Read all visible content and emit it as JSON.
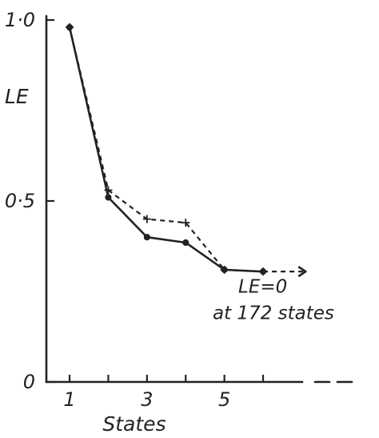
{
  "chart_data": {
    "type": "line",
    "title": "",
    "xlabel": "States",
    "ylabel": "LE",
    "xlim": [
      1,
      7.7
    ],
    "ylim": [
      0,
      1.0
    ],
    "x_ticks": [
      {
        "value": 1,
        "label": "1"
      },
      {
        "value": 2,
        "label": ""
      },
      {
        "value": 3,
        "label": "3"
      },
      {
        "value": 4,
        "label": ""
      },
      {
        "value": 5,
        "label": "5"
      },
      {
        "value": 6,
        "label": ""
      }
    ],
    "y_ticks": [
      {
        "value": 0,
        "label": "0"
      },
      {
        "value": 0.5,
        "label": "0·5"
      },
      {
        "value": 1.0,
        "label": "1·0"
      }
    ],
    "grid": false,
    "series": [
      {
        "style": "solid",
        "x": [
          1,
          2,
          3,
          4,
          5,
          6
        ],
        "y": [
          0.98,
          0.51,
          0.4,
          0.385,
          0.31,
          0.305
        ]
      },
      {
        "style": "dashed",
        "x": [
          1,
          2,
          3,
          4,
          5,
          6
        ],
        "y": [
          0.98,
          0.53,
          0.45,
          0.44,
          0.31,
          0.305
        ]
      }
    ],
    "extension_arrow": {
      "from": {
        "x": 6,
        "y": 0.305
      },
      "to": {
        "x": 7.1,
        "y": 0.305
      }
    },
    "annotation": {
      "lines": [
        "LE=0",
        "at 172 states"
      ],
      "x": 6.0,
      "y": 0.24
    }
  }
}
